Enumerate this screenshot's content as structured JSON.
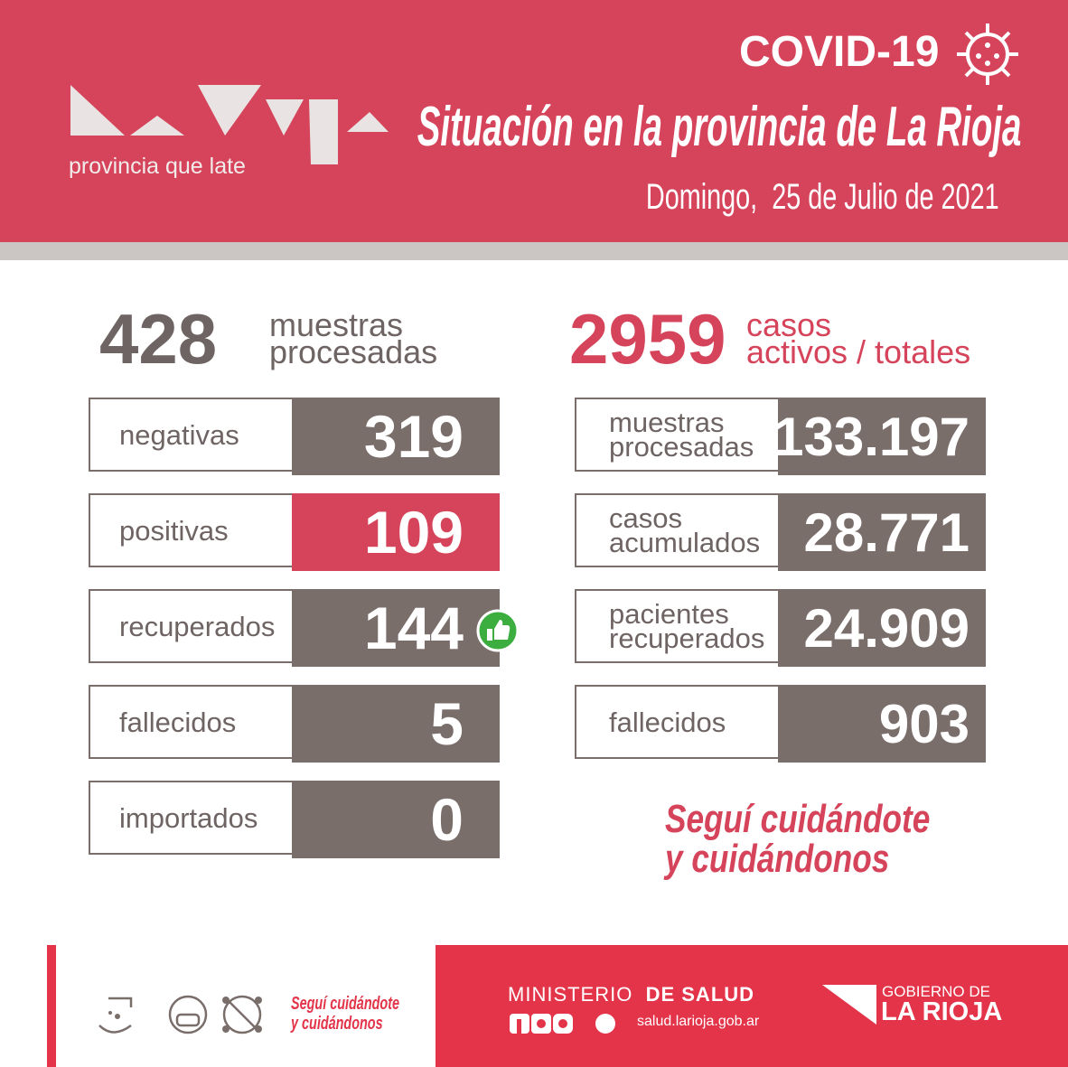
{
  "header": {
    "logo_tagline": "provincia que late",
    "badge": "COVID-19",
    "title": "Situación en la provincia de La Rioja",
    "date": "Domingo,  25 de Julio de 2021"
  },
  "daily": {
    "total": "428",
    "total_label": [
      "muestras",
      "procesadas"
    ],
    "rows": [
      {
        "label": [
          "negativas"
        ],
        "value": "319"
      },
      {
        "label": [
          "positivas"
        ],
        "value": "109"
      },
      {
        "label": [
          "recuperados"
        ],
        "value": "144"
      },
      {
        "label": [
          "fallecidos"
        ],
        "value": "5"
      },
      {
        "label": [
          "importados"
        ],
        "value": "0"
      }
    ]
  },
  "cumulative": {
    "total": "2959",
    "total_label": [
      "casos",
      "activos / totales"
    ],
    "rows": [
      {
        "label": [
          "muestras",
          "procesadas"
        ],
        "value": "133.197"
      },
      {
        "label": [
          "casos",
          "acumulados"
        ],
        "value": "28.771"
      },
      {
        "label": [
          "pacientes",
          "recuperados"
        ],
        "value": "24.909"
      },
      {
        "label": [
          "fallecidos"
        ],
        "value": "903"
      }
    ]
  },
  "slogan": [
    "Seguí cuidándote",
    "y cuidándonos"
  ],
  "footer": {
    "slogan": [
      "Seguí cuidándote",
      "y cuidándonos"
    ],
    "ministry": "MINISTERIO",
    "ministry_bold": "DE SALUD",
    "website": "salud.larioja.gob.ar",
    "gov_top": "GOBIERNO DE",
    "gov_name": "LA RIOJA"
  }
}
